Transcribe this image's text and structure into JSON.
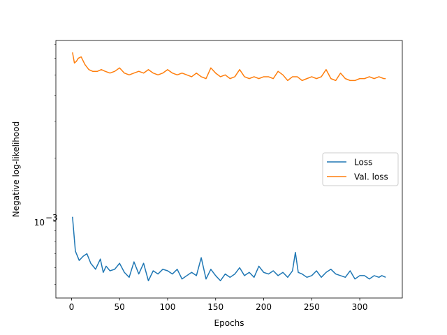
{
  "chart_data": {
    "type": "line",
    "title": "",
    "xlabel": "Epochs",
    "ylabel": "Negative log-likelihood",
    "xlim": [
      -16.3,
      344.3
    ],
    "ylim": [
      0.00043,
      0.0073
    ],
    "yscale": "log",
    "x_ticks": [
      0,
      50,
      100,
      150,
      200,
      250,
      300
    ],
    "y_ticks": [
      {
        "value": 0.001,
        "label": "10",
        "exponent": "−3"
      }
    ],
    "grid": false,
    "legend": {
      "position": "center-right",
      "entries": [
        "Loss",
        "Val. loss"
      ]
    },
    "colors": {
      "loss": "#1f77b4",
      "val_loss": "#ff7f0e"
    },
    "series": [
      {
        "name": "Loss",
        "x": [
          1,
          4,
          8,
          12,
          16,
          20,
          25,
          30,
          33,
          36,
          40,
          45,
          50,
          55,
          60,
          65,
          70,
          75,
          80,
          85,
          90,
          95,
          100,
          105,
          110,
          115,
          120,
          125,
          130,
          135,
          140,
          145,
          150,
          155,
          160,
          165,
          170,
          175,
          180,
          185,
          190,
          195,
          200,
          205,
          210,
          215,
          220,
          225,
          230,
          233,
          236,
          240,
          245,
          250,
          255,
          260,
          265,
          270,
          275,
          280,
          285,
          290,
          295,
          300,
          305,
          310,
          315,
          320,
          323,
          327
        ],
        "values": [
          0.00105,
          0.00072,
          0.00065,
          0.00068,
          0.0007,
          0.00063,
          0.00059,
          0.00066,
          0.00057,
          0.00061,
          0.00058,
          0.00059,
          0.00063,
          0.00057,
          0.00054,
          0.00064,
          0.00056,
          0.00063,
          0.00052,
          0.00058,
          0.00056,
          0.00059,
          0.00058,
          0.00056,
          0.00059,
          0.00053,
          0.00055,
          0.00057,
          0.00055,
          0.00067,
          0.00053,
          0.00059,
          0.00055,
          0.00052,
          0.00056,
          0.00054,
          0.00056,
          0.0006,
          0.00055,
          0.00057,
          0.00054,
          0.00061,
          0.00057,
          0.00056,
          0.00058,
          0.00055,
          0.00057,
          0.00054,
          0.00058,
          0.00071,
          0.00057,
          0.00056,
          0.00054,
          0.00055,
          0.00058,
          0.00054,
          0.00057,
          0.00059,
          0.00056,
          0.00055,
          0.00054,
          0.00058,
          0.00053,
          0.00055,
          0.00055,
          0.00053,
          0.00055,
          0.00054,
          0.00055,
          0.00054
        ]
      },
      {
        "name": "Val. loss",
        "x": [
          1,
          3,
          5,
          7,
          10,
          14,
          18,
          22,
          27,
          31,
          35,
          40,
          45,
          50,
          55,
          60,
          65,
          70,
          75,
          80,
          85,
          90,
          95,
          100,
          105,
          110,
          115,
          120,
          125,
          130,
          135,
          140,
          145,
          150,
          155,
          160,
          165,
          170,
          175,
          180,
          185,
          190,
          195,
          200,
          205,
          210,
          215,
          220,
          225,
          230,
          235,
          240,
          245,
          250,
          255,
          260,
          265,
          270,
          275,
          280,
          285,
          290,
          295,
          300,
          305,
          310,
          315,
          320,
          325,
          327
        ],
        "values": [
          0.0064,
          0.0057,
          0.0058,
          0.006,
          0.0061,
          0.0056,
          0.0053,
          0.0052,
          0.0052,
          0.0053,
          0.0052,
          0.0051,
          0.0052,
          0.0054,
          0.0051,
          0.005,
          0.0051,
          0.0052,
          0.0051,
          0.0053,
          0.0051,
          0.005,
          0.0051,
          0.0053,
          0.0051,
          0.005,
          0.0051,
          0.005,
          0.0049,
          0.0051,
          0.0049,
          0.0048,
          0.0054,
          0.0051,
          0.0049,
          0.005,
          0.0048,
          0.0049,
          0.0053,
          0.0049,
          0.0048,
          0.0049,
          0.0048,
          0.0049,
          0.0049,
          0.0048,
          0.0052,
          0.005,
          0.0047,
          0.0049,
          0.0049,
          0.0047,
          0.0048,
          0.0049,
          0.0048,
          0.0049,
          0.0053,
          0.0048,
          0.0047,
          0.0051,
          0.0048,
          0.0047,
          0.0047,
          0.0048,
          0.0048,
          0.0049,
          0.0048,
          0.0049,
          0.0048,
          0.0048
        ]
      }
    ]
  }
}
